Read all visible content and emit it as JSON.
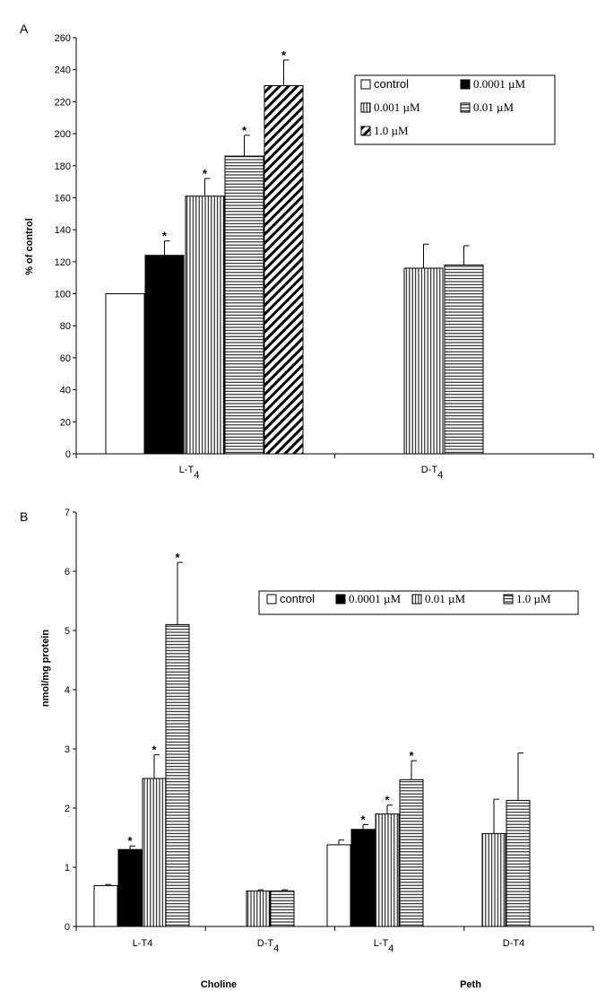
{
  "chart_data": [
    {
      "panel": "A",
      "type": "bar",
      "ylabel": "% of control",
      "ylim": [
        0,
        260
      ],
      "ytick_step": 20,
      "groups": [
        {
          "label_main": "L-T",
          "label_sub": "4",
          "bars": [
            {
              "series": "control",
              "value": 100,
              "error": 0,
              "sig": false
            },
            {
              "series": "0.0001 µM",
              "value": 124,
              "error": 9,
              "sig": true
            },
            {
              "series": "0.001 µM",
              "value": 161,
              "error": 11,
              "sig": true
            },
            {
              "series": "0.01 µM",
              "value": 186,
              "error": 13,
              "sig": true
            },
            {
              "series": "1.0 µM",
              "value": 230,
              "error": 16,
              "sig": true
            }
          ]
        },
        {
          "label_main": "D-T",
          "label_sub": "4",
          "bars": [
            {
              "series": "0.001 µM",
              "value": 116,
              "error": 15,
              "sig": false
            },
            {
              "series": "0.01 µM",
              "value": 118,
              "error": 12,
              "sig": false
            }
          ]
        }
      ],
      "legend": [
        {
          "label": "control",
          "pattern": "white"
        },
        {
          "label": "0.0001 µM",
          "pattern": "black"
        },
        {
          "label": "0.001 µM",
          "pattern": "vert"
        },
        {
          "label": "0.01 µM",
          "pattern": "horiz"
        },
        {
          "label": "1.0 µM",
          "pattern": "diag"
        }
      ],
      "sig_marker": "*"
    },
    {
      "panel": "B",
      "type": "bar",
      "ylabel": "nmol/mg protein",
      "ylim": [
        0,
        7
      ],
      "ytick_step": 1,
      "groups": [
        {
          "label_main": "L-T4",
          "label_sub": "",
          "bars": [
            {
              "series": "control",
              "value": 0.69,
              "error": 0.02,
              "sig": false
            },
            {
              "series": "0.0001 µM",
              "value": 1.3,
              "error": 0.06,
              "sig": true
            },
            {
              "series": "0.01 µM",
              "value": 2.5,
              "error": 0.4,
              "sig": true
            },
            {
              "series": "1.0 µM",
              "value": 5.1,
              "error": 1.05,
              "sig": true
            }
          ]
        },
        {
          "label_main": "D-T",
          "label_sub": "4",
          "bars": [
            {
              "series": "0.01 µM",
              "value": 0.6,
              "error": 0.02,
              "sig": false
            },
            {
              "series": "1.0 µM",
              "value": 0.6,
              "error": 0.02,
              "sig": false
            }
          ]
        },
        {
          "label_main": "L-T",
          "label_sub": "4",
          "bars": [
            {
              "series": "control",
              "value": 1.38,
              "error": 0.08,
              "sig": false
            },
            {
              "series": "0.0001 µM",
              "value": 1.64,
              "error": 0.08,
              "sig": true
            },
            {
              "series": "0.01 µM",
              "value": 1.9,
              "error": 0.15,
              "sig": true
            },
            {
              "series": "1.0 µM",
              "value": 2.48,
              "error": 0.32,
              "sig": true
            }
          ]
        },
        {
          "label_main": "D-T4",
          "label_sub": "",
          "bars": [
            {
              "series": "0.01 µM",
              "value": 1.57,
              "error": 0.58,
              "sig": false
            },
            {
              "series": "1.0 µM",
              "value": 2.13,
              "error": 0.8,
              "sig": false
            }
          ]
        }
      ],
      "categories_outer": [
        "Choline",
        "Peth"
      ],
      "legend": [
        {
          "label": "control",
          "pattern": "white"
        },
        {
          "label": "0.0001 µM",
          "pattern": "black"
        },
        {
          "label": "0.01 µM",
          "pattern": "vert"
        },
        {
          "label": "1.0 µM",
          "pattern": "horiz"
        }
      ],
      "sig_marker": "*"
    }
  ]
}
